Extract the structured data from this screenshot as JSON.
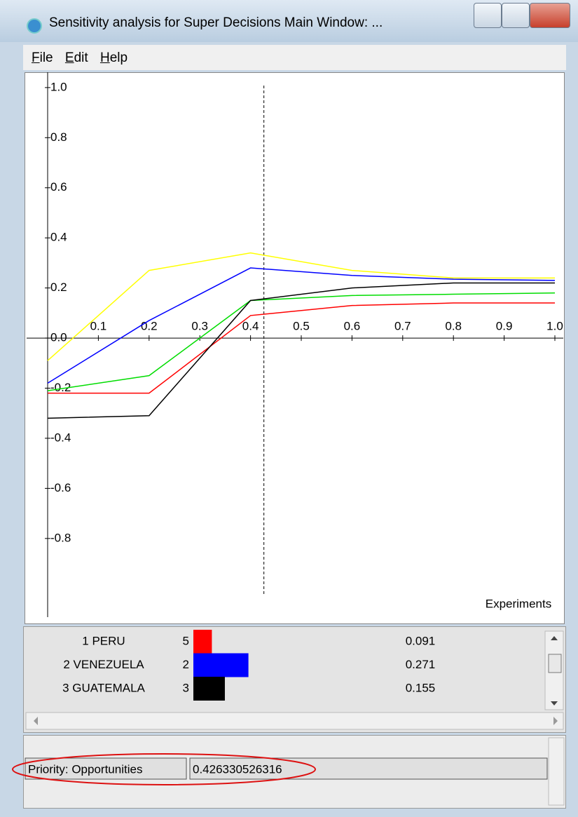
{
  "window": {
    "title": "Sensitivity analysis for Super Decisions Main Window: ..."
  },
  "menu": [
    "File",
    "Edit",
    "Help"
  ],
  "chart_data": {
    "type": "line",
    "x_label": "Experiments",
    "x": [
      0,
      0.2,
      0.4,
      0.6,
      0.8,
      1.0
    ],
    "series": [
      {
        "color": "#ffff00",
        "values": [
          -0.09,
          0.27,
          0.34,
          0.27,
          0.24,
          0.24
        ]
      },
      {
        "color": "#0000ff",
        "values": [
          -0.18,
          0.07,
          0.28,
          0.25,
          0.235,
          0.23
        ]
      },
      {
        "color": "#00dd00",
        "values": [
          -0.21,
          -0.15,
          0.15,
          0.17,
          0.175,
          0.18
        ]
      },
      {
        "color": "#ff0000",
        "values": [
          -0.22,
          -0.22,
          0.09,
          0.13,
          0.14,
          0.14
        ]
      },
      {
        "color": "#000000",
        "values": [
          -0.32,
          -0.31,
          0.15,
          0.2,
          0.22,
          0.22
        ]
      }
    ],
    "xlim": [
      0,
      1.0
    ],
    "ylim": [
      -1.1,
      1.05
    ],
    "xticks": [
      0.1,
      0.2,
      0.3,
      0.4,
      0.5,
      0.6,
      0.7,
      0.8,
      0.9,
      {
        "value": 1.0,
        "label": "1.0"
      }
    ],
    "yticks": [
      {
        "value": 1.0,
        "label": "1.0"
      },
      0.8,
      0.6,
      0.4,
      0.2,
      {
        "value": 0,
        "label": "0.0"
      },
      -0.2,
      -0.4,
      -0.6,
      -0.8
    ],
    "marker_x": 0.426330526316
  },
  "list": {
    "rows": [
      {
        "name": "1 PERU",
        "rank": 5,
        "value": 0.091,
        "color": "#ff0000"
      },
      {
        "name": "2 VENEZUELA",
        "rank": 2,
        "value": 0.271,
        "color": "#0000ff"
      },
      {
        "name": "3 GUATEMALA",
        "rank": 3,
        "value": 0.155,
        "color": "#000000"
      }
    ]
  },
  "priority": {
    "label": "Priority: Opportunities",
    "value": 0.426330526316
  }
}
